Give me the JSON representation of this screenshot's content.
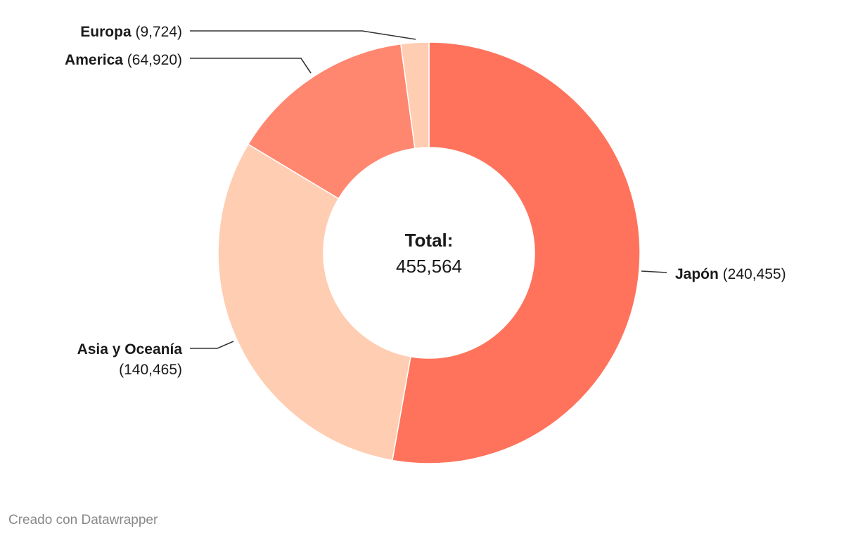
{
  "chart_data": {
    "type": "pie",
    "donut": true,
    "center_label": "Total:",
    "center_value": "455,564",
    "slices": [
      {
        "name": "Japón",
        "value": 240455,
        "value_label": "(240,455)",
        "color": "#ff735c"
      },
      {
        "name": "Asia y Oceanía",
        "value": 140465,
        "value_label": "(140,465)",
        "color": "#ffcdb2"
      },
      {
        "name": "America",
        "value": 64920,
        "value_label": "(64,920)",
        "color": "#ff8770"
      },
      {
        "name": "Europa",
        "value": 9724,
        "value_label": "(9,724)",
        "color": "#ffcdb2"
      }
    ]
  },
  "footer": {
    "credit": "Creado con Datawrapper"
  }
}
